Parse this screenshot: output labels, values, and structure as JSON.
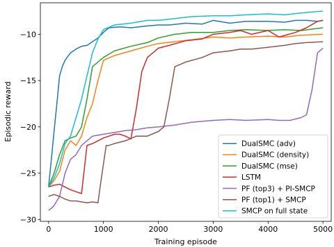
{
  "chart_data": {
    "type": "line",
    "title": "",
    "xlabel": "Training episode",
    "ylabel": "Episodic reward",
    "xlim": [
      -150,
      5150
    ],
    "ylim": [
      -30.2,
      -6.6
    ],
    "xticks": [
      0,
      1000,
      2000,
      3000,
      4000,
      5000
    ],
    "yticks": [
      -30,
      -25,
      -20,
      -15,
      -10
    ],
    "xtick_labels": [
      "0",
      "1000",
      "2000",
      "3000",
      "4000",
      "5000"
    ],
    "ytick_labels": [
      "−30",
      "−25",
      "−20",
      "−15",
      "−10"
    ],
    "grid": false,
    "legend_position": "lower-right",
    "series": [
      {
        "name": "DualSMC (adv)",
        "color": "#1f77b4",
        "x": [
          0,
          50,
          100,
          150,
          200,
          250,
          300,
          400,
          500,
          600,
          700,
          800,
          900,
          1000,
          1100,
          1300,
          1500,
          1800,
          2000,
          2200,
          2500,
          2800,
          3000,
          3300,
          3600,
          4000,
          4300,
          4500,
          4700,
          4900,
          5000
        ],
        "y": [
          -26.5,
          -23.5,
          -20.5,
          -17.5,
          -14.5,
          -13.5,
          -12.8,
          -12,
          -11.6,
          -11.3,
          -11.2,
          -10.8,
          -10.4,
          -9.8,
          -9.3,
          -9.2,
          -9.3,
          -9.1,
          -9.0,
          -9.0,
          -8.8,
          -8.9,
          -8.5,
          -8.8,
          -8.6,
          -8.6,
          -8.7,
          -8.5,
          -8.5,
          -8.6,
          -8.5
        ]
      },
      {
        "name": "DualSMC (density)",
        "color": "#ff7f0e",
        "x": [
          0,
          100,
          200,
          300,
          400,
          500,
          600,
          700,
          800,
          900,
          1000,
          1200,
          1500,
          1800,
          2000,
          2300,
          2600,
          3000,
          3300,
          3600,
          4000,
          4300,
          4600,
          5000
        ],
        "y": [
          -26.5,
          -25.8,
          -24.8,
          -22.5,
          -21.5,
          -22.0,
          -21.0,
          -19.0,
          -17.5,
          -15.0,
          -12.8,
          -12.3,
          -11.8,
          -11.3,
          -11.0,
          -10.8,
          -10.6,
          -10.3,
          -10.4,
          -10.3,
          -10.2,
          -10.3,
          -10.1,
          -10.0
        ]
      },
      {
        "name": "DualSMC (mse)",
        "color": "#2ca02c",
        "x": [
          0,
          100,
          200,
          300,
          400,
          500,
          600,
          700,
          800,
          900,
          1000,
          1200,
          1500,
          1800,
          2000,
          2300,
          2600,
          3000,
          3300,
          3600,
          4000,
          4300,
          4600,
          5000
        ],
        "y": [
          -26.5,
          -25.0,
          -23.0,
          -21.5,
          -21.2,
          -21.0,
          -20.0,
          -17.0,
          -13.5,
          -13.0,
          -12.5,
          -11.8,
          -11.3,
          -10.9,
          -10.4,
          -10.0,
          -9.8,
          -9.8,
          -9.6,
          -9.5,
          -9.6,
          -9.5,
          -9.6,
          -9.3
        ]
      },
      {
        "name": "LSTM",
        "color": "#d62728",
        "x": [
          0,
          100,
          200,
          300,
          400,
          500,
          600,
          700,
          800,
          900,
          1000,
          1100,
          1200,
          1300,
          1400,
          1500,
          1600,
          1700,
          1800,
          2000,
          2200,
          2500,
          2800,
          3000,
          3300,
          3500,
          3700,
          4000,
          4200,
          4500,
          4700,
          4900,
          5000
        ],
        "y": [
          -26.5,
          -26.3,
          -26.2,
          -26.5,
          -26.8,
          -27.0,
          -27.2,
          -22.0,
          -21.8,
          -21.5,
          -21.2,
          -21.0,
          -20.8,
          -20.8,
          -21.0,
          -21.3,
          -18.0,
          -14.0,
          -12.5,
          -11.5,
          -11.2,
          -10.7,
          -10.5,
          -10.0,
          -9.8,
          -9.6,
          -10.0,
          -9.6,
          -10.3,
          -9.8,
          -9.3,
          -8.6,
          -8.5
        ]
      },
      {
        "name": "PF (top3) + PI-SMCP",
        "color": "#9467bd",
        "x": [
          0,
          50,
          100,
          200,
          300,
          400,
          500,
          600,
          700,
          800,
          1000,
          1200,
          1400,
          1600,
          1800,
          2000,
          2300,
          2600,
          3000,
          3300,
          3600,
          4000,
          4200,
          4400,
          4600,
          4700,
          4800,
          4900,
          5000
        ],
        "y": [
          -29.0,
          -28.8,
          -28.5,
          -27.5,
          -25.0,
          -23.5,
          -23.0,
          -22.0,
          -21.5,
          -21.0,
          -20.8,
          -20.6,
          -20.4,
          -20.3,
          -20.1,
          -20.0,
          -19.8,
          -19.5,
          -19.3,
          -19.2,
          -19.3,
          -19.2,
          -19.3,
          -19.3,
          -19.0,
          -18.7,
          -16.0,
          -12.0,
          -11.5
        ]
      },
      {
        "name": "PF (top1) + SMCP",
        "color": "#8c564b",
        "x": [
          0,
          100,
          200,
          300,
          400,
          500,
          600,
          700,
          800,
          900,
          950,
          1000,
          1050,
          1100,
          1200,
          1400,
          1600,
          1800,
          2000,
          2100,
          2200,
          2300,
          2500,
          2800,
          3000,
          3300,
          3500,
          3700,
          4000,
          4300,
          4500,
          4700,
          5000
        ],
        "y": [
          -27.5,
          -27.3,
          -27.5,
          -27.8,
          -28.0,
          -28.0,
          -28.1,
          -28.2,
          -28.1,
          -28.2,
          -26.0,
          -24.0,
          -22.0,
          -22.0,
          -21.8,
          -21.5,
          -21.0,
          -21.0,
          -20.5,
          -20.0,
          -17.0,
          -13.5,
          -13.0,
          -12.5,
          -12.0,
          -11.8,
          -11.6,
          -11.6,
          -11.4,
          -11.2,
          -11.0,
          -10.9,
          -10.8
        ]
      },
      {
        "name": "SMCP on full state",
        "color": "#17becf",
        "x": [
          0,
          100,
          200,
          300,
          400,
          500,
          600,
          700,
          800,
          900,
          1000,
          1200,
          1500,
          1800,
          2000,
          2300,
          2600,
          3000,
          3300,
          3600,
          4000,
          4300,
          4600,
          4800,
          5000
        ],
        "y": [
          -26.5,
          -25.5,
          -24.0,
          -21.8,
          -21.0,
          -19.0,
          -17.0,
          -14.5,
          -12.0,
          -10.5,
          -9.5,
          -9.0,
          -8.8,
          -8.5,
          -8.5,
          -8.3,
          -8.1,
          -8.0,
          -8.0,
          -7.9,
          -7.8,
          -7.9,
          -7.7,
          -7.6,
          -7.5
        ]
      }
    ]
  }
}
